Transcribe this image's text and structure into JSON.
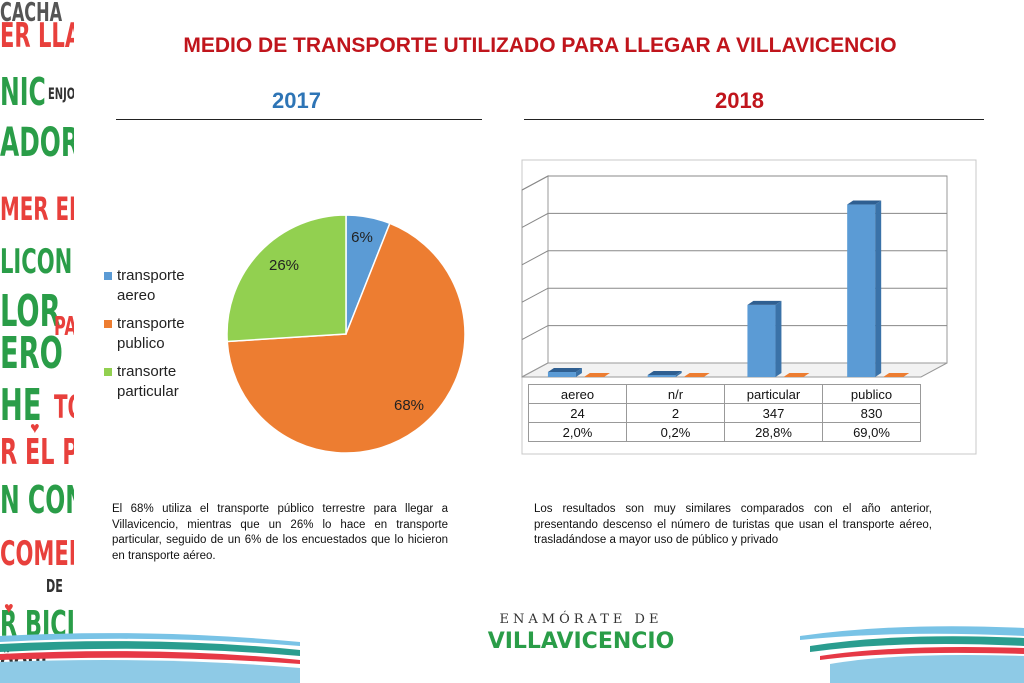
{
  "title": "MEDIO DE TRANSPORTE UTILIZADO PARA LLEGAR A VILLAVICENCIO",
  "year_left": "2017",
  "year_right": "2018",
  "colors": {
    "title": "#c0151c",
    "year2017": "#2e75b6",
    "year2018": "#c0151c",
    "aereo": "#5b9bd5",
    "publico": "#ed7d31",
    "particular": "#92d050"
  },
  "decor_words": [
    "CACHA",
    "ER LLAN",
    "NIC",
    "ENJOS",
    "ADORE",
    "MER EL F",
    "LICON",
    "LOR",
    "PA",
    "ERO",
    "HE",
    "TO",
    "R EL PARÇ",
    "N CON",
    "COMER",
    "DE",
    "R BICIC",
    "ÕOHF"
  ],
  "logo": {
    "line1": "ENAMÓRATE DE",
    "line2": "VILLAVICENCIO"
  },
  "paragraph_left": "El 68% utiliza el transporte público terrestre para llegar a Villavicencio, mientras que un 26% lo hace en transporte particular, seguido de un 6% de los encuestados que lo hicieron en transporte aéreo.",
  "paragraph_right": "Los resultados son muy similares comparados con el año anterior, presentando descenso el número de turistas que usan el transporte aéreo, trasladándose a mayor uso de público y privado",
  "chart_data": [
    {
      "type": "pie",
      "year": "2017",
      "labels": [
        "transporte aereo",
        "transporte publico",
        "transorte particular"
      ],
      "values": [
        6,
        68,
        26
      ],
      "data_labels": [
        "6%",
        "68%",
        "26%"
      ],
      "legend_placement": "left"
    },
    {
      "type": "bar",
      "year": "2018",
      "categories": [
        "aereo",
        "n/r",
        "particular",
        "publico"
      ],
      "series": [
        {
          "values": [
            24,
            2,
            347,
            830
          ]
        },
        {
          "values": [
            2.0,
            0.2,
            28.8,
            69.0
          ]
        }
      ],
      "table_rows": [
        [
          "24",
          "2",
          "347",
          "830"
        ],
        [
          "2,0%",
          "0,2%",
          "28,8%",
          "69,0%"
        ]
      ],
      "grid": true
    }
  ]
}
